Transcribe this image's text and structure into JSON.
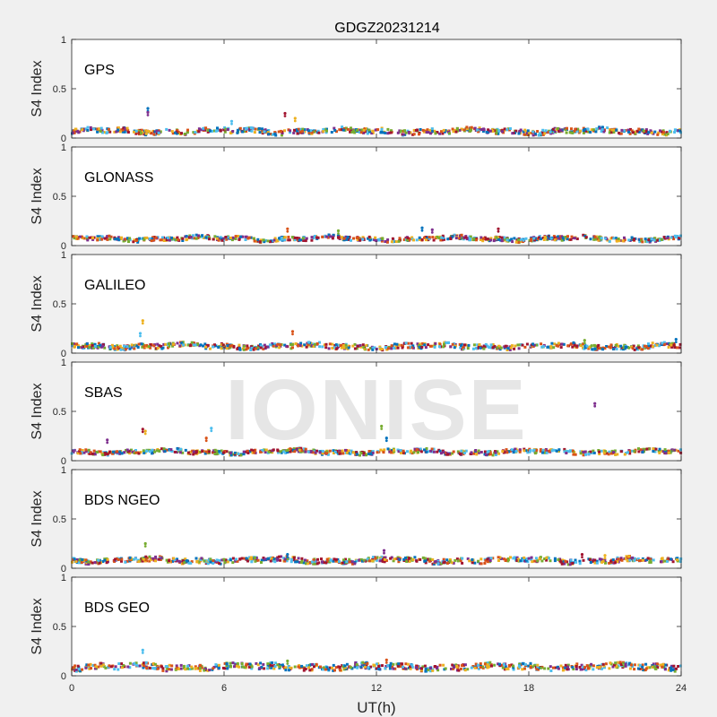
{
  "chart_data": {
    "type": "scatter",
    "title": "GDGZ20231214",
    "xlabel": "UT(h)",
    "ylabel": "S4 Index",
    "xlim": [
      0,
      24
    ],
    "ylim": [
      0,
      1
    ],
    "xticks": [
      "0",
      "6",
      "12",
      "18",
      "24"
    ],
    "yticks": [
      "0",
      "0.5",
      "1"
    ],
    "grid": false,
    "watermark": "IONISE",
    "palette": [
      "#0072bd",
      "#d95319",
      "#edb120",
      "#7e2f8e",
      "#77ac30",
      "#4dbeee",
      "#a2142f"
    ],
    "panels": [
      {
        "label": "GPS",
        "base_level": 0.07,
        "spread": 0.025,
        "outliers": [
          [
            3.0,
            0.3
          ],
          [
            3.0,
            0.26
          ],
          [
            8.4,
            0.25
          ],
          [
            8.8,
            0.2
          ],
          [
            6.3,
            0.17
          ]
        ]
      },
      {
        "label": "GLONASS",
        "base_level": 0.07,
        "spread": 0.02,
        "outliers": [
          [
            8.5,
            0.17
          ],
          [
            10.5,
            0.15
          ],
          [
            13.8,
            0.18
          ],
          [
            14.2,
            0.16
          ],
          [
            16.8,
            0.17
          ]
        ]
      },
      {
        "label": "GALILEO",
        "base_level": 0.07,
        "spread": 0.025,
        "outliers": [
          [
            2.8,
            0.33
          ],
          [
            2.7,
            0.2
          ],
          [
            8.7,
            0.22
          ],
          [
            20.2,
            0.13
          ],
          [
            23.8,
            0.14
          ]
        ]
      },
      {
        "label": "SBAS",
        "base_level": 0.09,
        "spread": 0.02,
        "outliers": [
          [
            1.4,
            0.21
          ],
          [
            2.8,
            0.32
          ],
          [
            2.9,
            0.3
          ],
          [
            5.5,
            0.33
          ],
          [
            5.3,
            0.23
          ],
          [
            12.2,
            0.35
          ],
          [
            12.4,
            0.23
          ],
          [
            20.6,
            0.58
          ]
        ]
      },
      {
        "label": "BDS NGEO",
        "base_level": 0.08,
        "spread": 0.025,
        "outliers": [
          [
            2.9,
            0.25
          ],
          [
            8.5,
            0.14
          ],
          [
            12.3,
            0.18
          ],
          [
            20.1,
            0.14
          ],
          [
            21.0,
            0.13
          ]
        ]
      },
      {
        "label": "BDS GEO",
        "base_level": 0.09,
        "spread": 0.03,
        "outliers": [
          [
            2.8,
            0.26
          ],
          [
            12.4,
            0.16
          ],
          [
            8.5,
            0.15
          ]
        ]
      }
    ]
  }
}
